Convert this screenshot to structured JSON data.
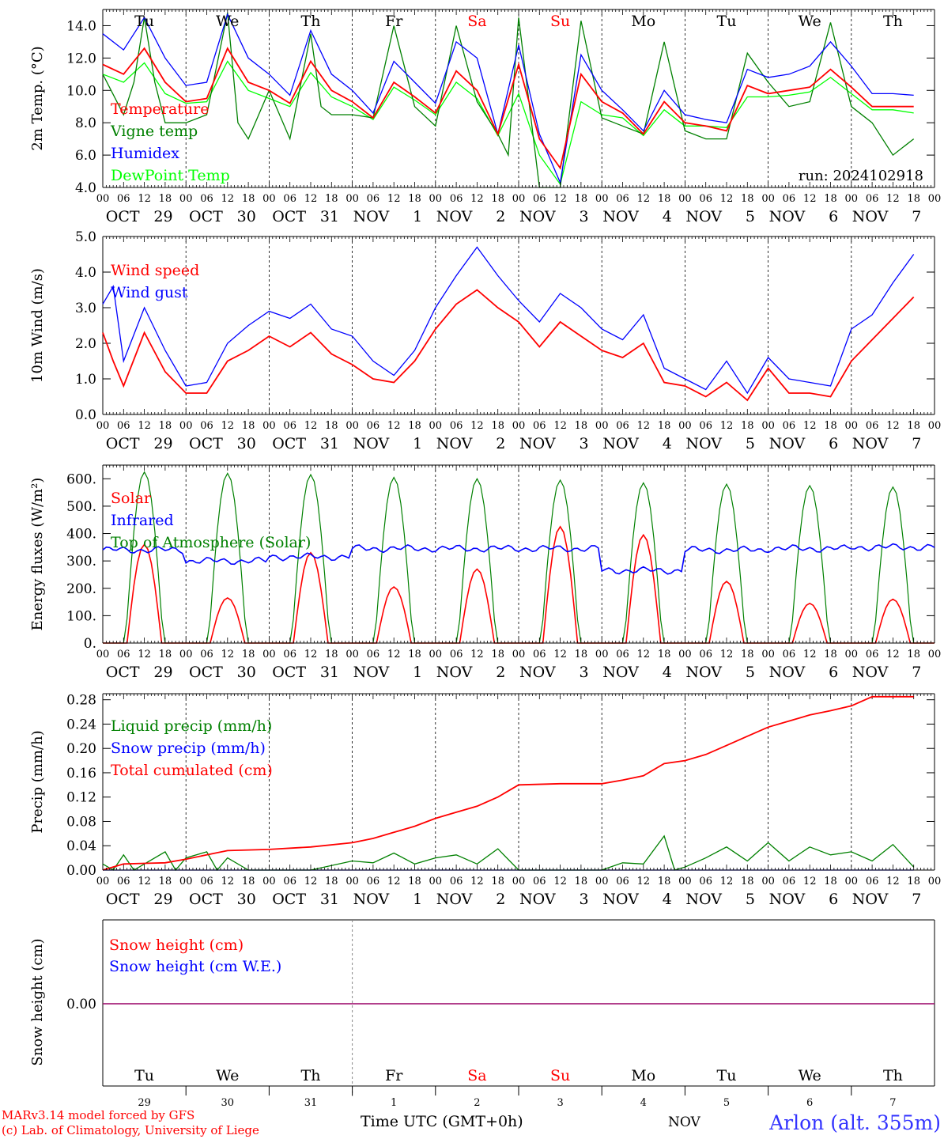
{
  "footer": {
    "credit_line1": "MARv3.14 model forced by GFS",
    "credit_line2": "(c) Lab. of Climatology, University of Liege",
    "xaxis_title": "Time UTC (GMT+0h)",
    "month": "NOV",
    "station": "Arlon (alt. 355m)"
  },
  "axis": {
    "hour_ticks": [
      "00",
      "06",
      "12",
      "18"
    ],
    "date_labels": [
      {
        "month": "OCT",
        "day": "29"
      },
      {
        "month": "OCT",
        "day": "30"
      },
      {
        "month": "OCT",
        "day": "31"
      },
      {
        "month": "NOV",
        "day": "1"
      },
      {
        "month": "NOV",
        "day": "2"
      },
      {
        "month": "NOV",
        "day": "3"
      },
      {
        "month": "NOV",
        "day": "4"
      },
      {
        "month": "NOV",
        "day": "5"
      },
      {
        "month": "NOV",
        "day": "6"
      },
      {
        "month": "NOV",
        "day": "7"
      }
    ],
    "weekdays": [
      {
        "label": "Tu",
        "color": "#000000"
      },
      {
        "label": "We",
        "color": "#000000"
      },
      {
        "label": "Th",
        "color": "#000000"
      },
      {
        "label": "Fr",
        "color": "#000000"
      },
      {
        "label": "Sa",
        "color": "#ff0000"
      },
      {
        "label": "Su",
        "color": "#ff0000"
      },
      {
        "label": "Mo",
        "color": "#000000"
      },
      {
        "label": "Tu",
        "color": "#000000"
      },
      {
        "label": "We",
        "color": "#000000"
      },
      {
        "label": "Th",
        "color": "#000000"
      }
    ],
    "day_numbers": [
      "29",
      "30",
      "31",
      "1",
      "2",
      "3",
      "4",
      "5",
      "6",
      "7"
    ]
  },
  "chart_data": [
    {
      "type": "line",
      "ylabel": "2m Temp. (°C)",
      "ylim": [
        4.0,
        15.0
      ],
      "yticks": [
        "4.0",
        "6.0",
        "8.0",
        "10.0",
        "12.0",
        "14.0"
      ],
      "annotation": "run: 2024102918",
      "x_unit": "hours since OCT 29 00 UTC",
      "series": [
        {
          "name": "Temperature",
          "color": "#ff0000",
          "x": [
            0,
            6,
            12,
            18,
            24,
            30,
            36,
            42,
            48,
            54,
            60,
            66,
            72,
            78,
            84,
            90,
            96,
            102,
            108,
            114,
            120,
            126,
            132,
            138,
            144,
            150,
            156,
            162,
            168,
            174,
            180,
            186,
            192,
            198,
            204,
            210,
            216,
            222,
            228,
            234
          ],
          "values": [
            11.6,
            11.0,
            12.6,
            10.5,
            9.3,
            9.5,
            12.6,
            10.5,
            10.0,
            9.2,
            11.8,
            10.0,
            9.3,
            8.3,
            10.5,
            9.6,
            8.6,
            11.2,
            10.0,
            7.3,
            11.6,
            7.0,
            5.2,
            11.0,
            9.3,
            8.6,
            7.3,
            9.3,
            8.0,
            7.8,
            7.5,
            10.3,
            9.8,
            10.0,
            10.2,
            11.3,
            10.2,
            9.0,
            9.0,
            9.0
          ]
        },
        {
          "name": "Vigne temp",
          "color": "#008000",
          "x": [
            0,
            6,
            9,
            12,
            15,
            18,
            24,
            30,
            36,
            39,
            42,
            48,
            54,
            60,
            63,
            66,
            72,
            78,
            84,
            90,
            96,
            102,
            108,
            114,
            117,
            120,
            126,
            132,
            138,
            144,
            150,
            156,
            162,
            168,
            174,
            180,
            186,
            192,
            198,
            204,
            210,
            216,
            222,
            228,
            234
          ],
          "values": [
            11.0,
            8.5,
            10.5,
            14.5,
            10.5,
            8.0,
            8.0,
            8.5,
            14.8,
            8.0,
            7.0,
            10.0,
            7.0,
            13.5,
            9.0,
            8.5,
            8.5,
            8.3,
            14.0,
            9.0,
            7.8,
            14.0,
            9.3,
            7.3,
            6.0,
            14.5,
            4.0,
            4.0,
            14.3,
            8.3,
            7.8,
            7.3,
            13.0,
            7.5,
            7.0,
            7.0,
            12.3,
            10.5,
            9.0,
            9.3,
            14.2,
            9.0,
            8.0,
            6.0,
            7.0
          ]
        },
        {
          "name": "Humidex",
          "color": "#0000ff",
          "x": [
            0,
            6,
            12,
            18,
            24,
            30,
            36,
            42,
            48,
            54,
            60,
            66,
            72,
            78,
            84,
            90,
            96,
            102,
            108,
            114,
            120,
            126,
            132,
            138,
            144,
            150,
            156,
            162,
            168,
            174,
            180,
            186,
            192,
            198,
            204,
            210,
            216,
            222,
            228,
            234
          ],
          "values": [
            13.5,
            12.5,
            14.5,
            12.0,
            10.3,
            10.5,
            14.7,
            12.0,
            11.0,
            9.7,
            13.7,
            11.0,
            10.0,
            8.6,
            11.8,
            10.5,
            9.2,
            13.0,
            12.0,
            7.3,
            12.8,
            7.3,
            4.3,
            12.2,
            10.0,
            8.8,
            7.5,
            10.0,
            8.5,
            8.2,
            8.0,
            11.3,
            10.8,
            11.0,
            11.5,
            13.0,
            11.5,
            9.8,
            9.8,
            9.7
          ]
        },
        {
          "name": "DewPoint Temp",
          "color": "#00ff00",
          "x": [
            0,
            6,
            12,
            18,
            24,
            30,
            36,
            42,
            48,
            54,
            60,
            66,
            72,
            78,
            84,
            90,
            96,
            102,
            108,
            114,
            120,
            126,
            132,
            138,
            144,
            150,
            156,
            162,
            168,
            174,
            180,
            186,
            192,
            198,
            204,
            210,
            216,
            222,
            228,
            234
          ],
          "values": [
            11.0,
            10.5,
            11.7,
            9.8,
            9.2,
            9.3,
            11.8,
            10.0,
            9.5,
            9.0,
            11.1,
            9.6,
            9.0,
            8.2,
            10.2,
            9.4,
            8.5,
            10.5,
            9.5,
            7.2,
            9.8,
            6.0,
            4.2,
            9.3,
            8.5,
            8.3,
            7.2,
            8.8,
            7.8,
            7.8,
            7.7,
            9.6,
            9.6,
            9.7,
            9.9,
            10.8,
            9.8,
            8.8,
            8.8,
            8.6
          ]
        }
      ]
    },
    {
      "type": "line",
      "ylabel": "10m Wind (m/s)",
      "ylim": [
        0.0,
        5.0
      ],
      "yticks": [
        "0.0",
        "1.0",
        "2.0",
        "3.0",
        "4.0",
        "5.0"
      ],
      "x_unit": "hours since OCT 29 00 UTC",
      "series": [
        {
          "name": "Wind speed",
          "color": "#ff0000",
          "x": [
            0,
            3,
            6,
            12,
            18,
            24,
            30,
            36,
            42,
            48,
            54,
            60,
            66,
            72,
            78,
            84,
            90,
            96,
            102,
            108,
            114,
            120,
            126,
            132,
            138,
            144,
            150,
            156,
            162,
            168,
            174,
            180,
            186,
            192,
            198,
            204,
            210,
            216,
            222,
            228,
            234
          ],
          "values": [
            2.3,
            1.5,
            0.8,
            2.3,
            1.2,
            0.6,
            0.6,
            1.5,
            1.8,
            2.2,
            1.9,
            2.3,
            1.7,
            1.4,
            1.0,
            0.9,
            1.5,
            2.4,
            3.1,
            3.5,
            3.0,
            2.6,
            1.9,
            2.6,
            2.2,
            1.8,
            1.6,
            2.0,
            0.9,
            0.8,
            0.5,
            0.9,
            0.4,
            1.3,
            0.6,
            0.6,
            0.5,
            1.5,
            2.1,
            2.7,
            3.3
          ]
        },
        {
          "name": "Wind gust",
          "color": "#0000ff",
          "x": [
            0,
            3,
            6,
            12,
            18,
            24,
            30,
            36,
            42,
            48,
            54,
            60,
            66,
            72,
            78,
            84,
            90,
            96,
            102,
            108,
            114,
            120,
            126,
            132,
            138,
            144,
            150,
            156,
            162,
            168,
            174,
            180,
            186,
            192,
            198,
            204,
            210,
            216,
            222,
            228,
            234
          ],
          "values": [
            3.1,
            3.6,
            1.5,
            3.0,
            1.8,
            0.8,
            0.9,
            2.0,
            2.5,
            2.9,
            2.7,
            3.1,
            2.4,
            2.2,
            1.5,
            1.1,
            1.8,
            3.0,
            3.9,
            4.7,
            3.9,
            3.2,
            2.6,
            3.4,
            3.0,
            2.4,
            2.1,
            2.8,
            1.3,
            1.0,
            0.7,
            1.5,
            0.6,
            1.6,
            1.0,
            0.9,
            0.8,
            2.4,
            2.8,
            3.7,
            4.5
          ]
        }
      ]
    },
    {
      "type": "line",
      "ylabel": "Energy fluxes (W/m²)",
      "ylim": [
        0,
        650
      ],
      "yticks": [
        "0.",
        "100.",
        "200.",
        "300.",
        "400.",
        "500.",
        "600."
      ],
      "x_unit": "hours since OCT 29 00 UTC",
      "daily_peaks": {
        "solar": [
          360,
          165,
          330,
          205,
          270,
          425,
          395,
          225,
          145,
          160
        ],
        "top_of_atmosphere": [
          625,
          620,
          615,
          605,
          600,
          595,
          585,
          580,
          575,
          570
        ],
        "infrared": [
          340,
          300,
          315,
          345,
          345,
          345,
          265,
          340,
          345,
          350
        ]
      },
      "series": [
        {
          "name": "Solar",
          "color": "#ff0000"
        },
        {
          "name": "Infrared",
          "color": "#0000ff"
        },
        {
          "name": "Top of Atmosphere (Solar)",
          "color": "#008000"
        }
      ]
    },
    {
      "type": "line",
      "ylabel": "Precip (mm/h)",
      "ylim": [
        0.0,
        0.29
      ],
      "yticks": [
        "0.00",
        "0.04",
        "0.08",
        "0.12",
        "0.16",
        "0.20",
        "0.24",
        "0.28"
      ],
      "x_unit": "hours since OCT 29 00 UTC",
      "series": [
        {
          "name": "Liquid precip (mm/h)",
          "color": "#008000",
          "x": [
            0,
            3,
            6,
            9,
            12,
            18,
            21,
            24,
            30,
            33,
            36,
            42,
            48,
            60,
            72,
            78,
            84,
            90,
            96,
            102,
            108,
            114,
            120,
            132,
            144,
            150,
            156,
            162,
            165,
            168,
            174,
            180,
            186,
            192,
            198,
            204,
            210,
            216,
            222,
            228,
            234
          ],
          "values": [
            0.01,
            0.0,
            0.025,
            0.0,
            0.01,
            0.03,
            0.0,
            0.02,
            0.03,
            0.0,
            0.02,
            0.0,
            0.0,
            0.0,
            0.015,
            0.012,
            0.028,
            0.01,
            0.02,
            0.025,
            0.01,
            0.035,
            0.0,
            0.0,
            0.0,
            0.012,
            0.01,
            0.056,
            0.0,
            0.005,
            0.02,
            0.038,
            0.015,
            0.045,
            0.015,
            0.038,
            0.025,
            0.03,
            0.015,
            0.042,
            0.005
          ]
        },
        {
          "name": "Snow precip (mm/h)",
          "color": "#0000ff",
          "x": [
            0,
            234
          ],
          "values": [
            0,
            0
          ]
        },
        {
          "name": "Total cumulated (cm)",
          "color": "#ff0000",
          "x": [
            0,
            6,
            12,
            18,
            24,
            30,
            36,
            48,
            60,
            72,
            78,
            84,
            90,
            96,
            102,
            108,
            114,
            120,
            132,
            144,
            150,
            156,
            162,
            168,
            174,
            180,
            186,
            192,
            198,
            204,
            210,
            216,
            222,
            228,
            234
          ],
          "values": [
            0.0,
            0.01,
            0.011,
            0.012,
            0.018,
            0.025,
            0.032,
            0.034,
            0.038,
            0.045,
            0.052,
            0.062,
            0.072,
            0.085,
            0.095,
            0.105,
            0.12,
            0.14,
            0.142,
            0.142,
            0.148,
            0.155,
            0.175,
            0.18,
            0.19,
            0.205,
            0.22,
            0.235,
            0.245,
            0.255,
            0.262,
            0.27,
            0.285,
            0.285,
            0.285
          ]
        }
      ]
    },
    {
      "type": "line",
      "ylabel": "Snow height (cm)",
      "ylim": [
        -1,
        1
      ],
      "yticks": [
        "0.00"
      ],
      "series": [
        {
          "name": "Snow height (cm)",
          "color": "#ff0000",
          "values": [
            0,
            0
          ]
        },
        {
          "name": "Snow height (cm W.E.)",
          "color": "#0000ff",
          "values": [
            0,
            0
          ]
        }
      ]
    }
  ]
}
